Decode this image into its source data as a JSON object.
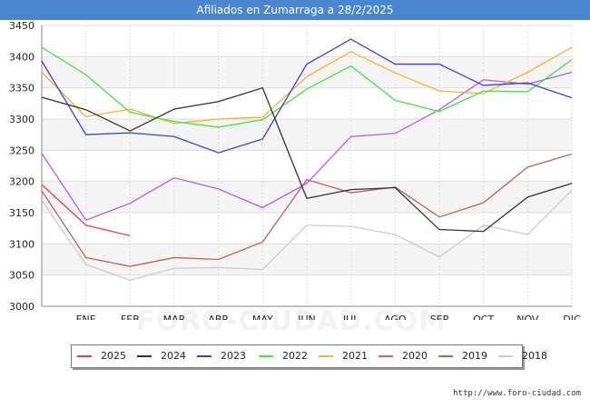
{
  "chart_data": {
    "type": "line",
    "title": "Afiliados en Zumarraga a 28/2/2025",
    "categories": [
      "",
      "ENE",
      "FEB",
      "MAR",
      "ABR",
      "MAY",
      "JUN",
      "JUL",
      "AGO",
      "SEP",
      "OCT",
      "NOV",
      "DIC"
    ],
    "yticks": [
      3000,
      3050,
      3100,
      3150,
      3200,
      3250,
      3300,
      3350,
      3400,
      3450
    ],
    "ylim": [
      3000,
      3450
    ],
    "grid": true,
    "legend_position": "bottom",
    "series": [
      {
        "name": "2025",
        "color": "#e8413f",
        "values": [
          3195,
          3130,
          3113,
          null,
          null,
          null,
          null,
          null,
          null,
          null,
          null,
          null,
          null
        ]
      },
      {
        "name": "2024",
        "color": "#333333",
        "values": [
          3335,
          3315,
          3281,
          3316,
          3328,
          3350,
          3173,
          3187,
          3190,
          3123,
          3120,
          3175,
          3197
        ]
      },
      {
        "name": "2023",
        "color": "#3f3fdc",
        "values": [
          3393,
          3275,
          3278,
          3272,
          3246,
          3268,
          3388,
          3428,
          3388,
          3388,
          3354,
          3358,
          3334
        ]
      },
      {
        "name": "2022",
        "color": "#3ee63e",
        "values": [
          3415,
          3371,
          3311,
          3296,
          3287,
          3299,
          3348,
          3385,
          3330,
          3312,
          3345,
          3344,
          3395
        ]
      },
      {
        "name": "2021",
        "color": "#f5b13c",
        "values": [
          3375,
          3304,
          3316,
          3293,
          3300,
          3303,
          3368,
          3408,
          3374,
          3345,
          3341,
          3375,
          3415
        ]
      },
      {
        "name": "2020",
        "color": "#b25ee6",
        "values": [
          3245,
          3138,
          3165,
          3206,
          3188,
          3158,
          3197,
          3272,
          3277,
          3315,
          3363,
          3356,
          3375
        ]
      },
      {
        "name": "2019",
        "color": "#b56363",
        "values": [
          3185,
          3078,
          3064,
          3078,
          3075,
          3103,
          3203,
          3182,
          3191,
          3143,
          3166,
          3223,
          3244
        ]
      },
      {
        "name": "2018",
        "color": "#cccccc",
        "values": [
          3170,
          3067,
          3042,
          3061,
          3062,
          3059,
          3130,
          3128,
          3115,
          3079,
          3130,
          3115,
          3186
        ]
      }
    ]
  },
  "watermark": "FORO-CIUDAD.COM",
  "footer": {
    "url": "http://www.foro-ciudad.com"
  }
}
